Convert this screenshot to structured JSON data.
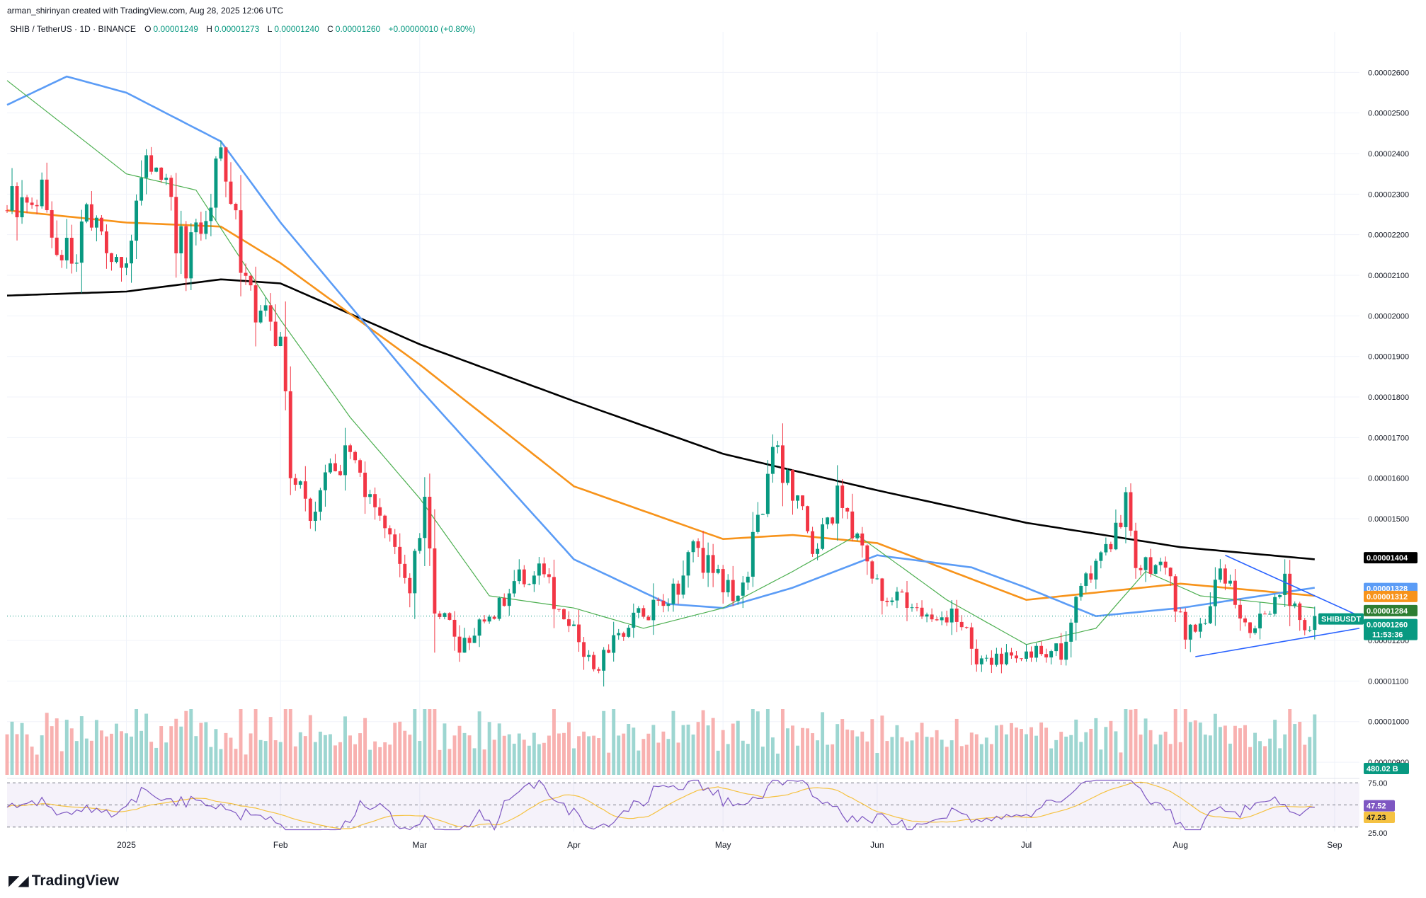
{
  "header": {
    "author_line": "arman_shirinyan created with TradingView.com, Aug 28, 2025 12:06 UTC"
  },
  "symbol": {
    "name": "SHIB / TetherUS · 1D · BINANCE",
    "open_label": "O",
    "open": "0.00001249",
    "high_label": "H",
    "high": "0.00001273",
    "low_label": "L",
    "low": "0.00001240",
    "close_label": "C",
    "close": "0.00001260",
    "change": "+0.00000010 (+0.80%)"
  },
  "footer": {
    "brand": "TradingView",
    "logo_glyph": "◤◢"
  },
  "colors": {
    "up": "#089981",
    "down": "#f23645",
    "upVol": "#92d2cc",
    "downVol": "#f7a9a7",
    "ma_black": "#000000",
    "ma_orange": "#f7931a",
    "ma_blue": "#5b9cf6",
    "ma_green": "#4caf50",
    "rsi": "#7e57c2",
    "rsi_ma": "#f5c242",
    "trendline": "#2962ff"
  },
  "chart_data": {
    "type": "candlestick",
    "symbol": "SHIBUSDT",
    "interval": "1D",
    "exchange": "BINANCE",
    "price_axis": {
      "range": [
        8.6e-06,
        2.7e-05
      ],
      "ticks": [
        {
          "value": 2.6e-05,
          "label": "0.00002600"
        },
        {
          "value": 2.5e-05,
          "label": "0.00002500"
        },
        {
          "value": 2.4e-05,
          "label": "0.00002400"
        },
        {
          "value": 2.3e-05,
          "label": "0.00002300"
        },
        {
          "value": 2.2e-05,
          "label": "0.00002200"
        },
        {
          "value": 2.1e-05,
          "label": "0.00002100"
        },
        {
          "value": 2e-05,
          "label": "0.00002000"
        },
        {
          "value": 1.9e-05,
          "label": "0.00001900"
        },
        {
          "value": 1.8e-05,
          "label": "0.00001800"
        },
        {
          "value": 1.7e-05,
          "label": "0.00001700"
        },
        {
          "value": 1.6e-05,
          "label": "0.00001600"
        },
        {
          "value": 1.5e-05,
          "label": "0.00001500"
        },
        {
          "value": 1.2e-05,
          "label": "0.00001200"
        },
        {
          "value": 1.1e-05,
          "label": "0.00001100"
        },
        {
          "value": 1e-05,
          "label": "0.00001000"
        },
        {
          "value": 9e-06,
          "label": "0.00000900"
        }
      ]
    },
    "time_axis": {
      "start": "2024-12-08",
      "end": "2025-09-06",
      "ticks": [
        {
          "date": "2025-01-01",
          "label": "2025"
        },
        {
          "date": "2025-02-01",
          "label": "Feb"
        },
        {
          "date": "2025-03-01",
          "label": "Mar"
        },
        {
          "date": "2025-04-01",
          "label": "Apr"
        },
        {
          "date": "2025-05-01",
          "label": "May"
        },
        {
          "date": "2025-06-01",
          "label": "Jun"
        },
        {
          "date": "2025-07-01",
          "label": "Jul"
        },
        {
          "date": "2025-08-01",
          "label": "Aug"
        },
        {
          "date": "2025-09-01",
          "label": "Sep"
        }
      ]
    },
    "close_anchors": [
      {
        "date": "2024-12-08",
        "close": 2.26e-05
      },
      {
        "date": "2024-12-14",
        "close": 2.32e-05
      },
      {
        "date": "2024-12-20",
        "close": 2.14e-05
      },
      {
        "date": "2024-12-26",
        "close": 2.26e-05
      },
      {
        "date": "2024-12-31",
        "close": 2.11e-05
      },
      {
        "date": "2025-01-06",
        "close": 2.4e-05
      },
      {
        "date": "2025-01-13",
        "close": 2.13e-05
      },
      {
        "date": "2025-01-18",
        "close": 2.25e-05
      },
      {
        "date": "2025-01-20",
        "close": 2.44e-05
      },
      {
        "date": "2025-01-25",
        "close": 2.07e-05
      },
      {
        "date": "2025-02-01",
        "close": 1.93e-05
      },
      {
        "date": "2025-02-03",
        "close": 1.62e-05
      },
      {
        "date": "2025-02-07",
        "close": 1.53e-05
      },
      {
        "date": "2025-02-15",
        "close": 1.67e-05
      },
      {
        "date": "2025-02-20",
        "close": 1.54e-05
      },
      {
        "date": "2025-02-27",
        "close": 1.35e-05
      },
      {
        "date": "2025-03-02",
        "close": 1.52e-05
      },
      {
        "date": "2025-03-04",
        "close": 1.29e-05
      },
      {
        "date": "2025-03-10",
        "close": 1.18e-05
      },
      {
        "date": "2025-03-16",
        "close": 1.27e-05
      },
      {
        "date": "2025-03-25",
        "close": 1.4e-05
      },
      {
        "date": "2025-03-30",
        "close": 1.25e-05
      },
      {
        "date": "2025-04-06",
        "close": 1.12e-05
      },
      {
        "date": "2025-04-09",
        "close": 1.21e-05
      },
      {
        "date": "2025-04-14",
        "close": 1.25e-05
      },
      {
        "date": "2025-04-22",
        "close": 1.32e-05
      },
      {
        "date": "2025-04-25",
        "close": 1.42e-05
      },
      {
        "date": "2025-05-04",
        "close": 1.29e-05
      },
      {
        "date": "2025-05-08",
        "close": 1.48e-05
      },
      {
        "date": "2025-05-11",
        "close": 1.68e-05
      },
      {
        "date": "2025-05-15",
        "close": 1.55e-05
      },
      {
        "date": "2025-05-20",
        "close": 1.42e-05
      },
      {
        "date": "2025-05-24",
        "close": 1.55e-05
      },
      {
        "date": "2025-05-30",
        "close": 1.41e-05
      },
      {
        "date": "2025-06-02",
        "close": 1.28e-05
      },
      {
        "date": "2025-06-08",
        "close": 1.3e-05
      },
      {
        "date": "2025-06-13",
        "close": 1.22e-05
      },
      {
        "date": "2025-06-16",
        "close": 1.3e-05
      },
      {
        "date": "2025-06-22",
        "close": 1.13e-05
      },
      {
        "date": "2025-06-25",
        "close": 1.15e-05
      },
      {
        "date": "2025-07-03",
        "close": 1.17e-05
      },
      {
        "date": "2025-07-08",
        "close": 1.18e-05
      },
      {
        "date": "2025-07-12",
        "close": 1.35e-05
      },
      {
        "date": "2025-07-18",
        "close": 1.44e-05
      },
      {
        "date": "2025-07-21",
        "close": 1.55e-05
      },
      {
        "date": "2025-07-23",
        "close": 1.39e-05
      },
      {
        "date": "2025-07-28",
        "close": 1.4e-05
      },
      {
        "date": "2025-08-02",
        "close": 1.23e-05
      },
      {
        "date": "2025-08-04",
        "close": 1.21e-05
      },
      {
        "date": "2025-08-09",
        "close": 1.35e-05
      },
      {
        "date": "2025-08-12",
        "close": 1.3e-05
      },
      {
        "date": "2025-08-14",
        "close": 1.25e-05
      },
      {
        "date": "2025-08-19",
        "close": 1.24e-05
      },
      {
        "date": "2025-08-22",
        "close": 1.35e-05
      },
      {
        "date": "2025-08-25",
        "close": 1.24e-05
      },
      {
        "date": "2025-08-28",
        "close": 1.26e-05
      }
    ],
    "moving_averages": [
      {
        "color_key": "ma_black",
        "points": [
          {
            "date": "2024-12-08",
            "value": 2.05e-05
          },
          {
            "date": "2025-01-01",
            "value": 2.06e-05
          },
          {
            "date": "2025-01-20",
            "value": 2.09e-05
          },
          {
            "date": "2025-02-01",
            "value": 2.08e-05
          },
          {
            "date": "2025-03-01",
            "value": 1.93e-05
          },
          {
            "date": "2025-04-01",
            "value": 1.79e-05
          },
          {
            "date": "2025-05-01",
            "value": 1.66e-05
          },
          {
            "date": "2025-06-01",
            "value": 1.57e-05
          },
          {
            "date": "2025-07-01",
            "value": 1.49e-05
          },
          {
            "date": "2025-08-01",
            "value": 1.43e-05
          },
          {
            "date": "2025-08-28",
            "value": 1.4e-05
          }
        ]
      },
      {
        "color_key": "ma_orange",
        "points": [
          {
            "date": "2024-12-08",
            "value": 2.26e-05
          },
          {
            "date": "2025-01-01",
            "value": 2.23e-05
          },
          {
            "date": "2025-01-20",
            "value": 2.22e-05
          },
          {
            "date": "2025-02-01",
            "value": 2.13e-05
          },
          {
            "date": "2025-03-01",
            "value": 1.88e-05
          },
          {
            "date": "2025-04-01",
            "value": 1.58e-05
          },
          {
            "date": "2025-05-01",
            "value": 1.45e-05
          },
          {
            "date": "2025-05-15",
            "value": 1.46e-05
          },
          {
            "date": "2025-06-01",
            "value": 1.44e-05
          },
          {
            "date": "2025-07-01",
            "value": 1.3e-05
          },
          {
            "date": "2025-08-01",
            "value": 1.34e-05
          },
          {
            "date": "2025-08-28",
            "value": 1.31e-05
          }
        ]
      },
      {
        "color_key": "ma_blue",
        "points": [
          {
            "date": "2024-12-08",
            "value": 2.52e-05
          },
          {
            "date": "2024-12-20",
            "value": 2.59e-05
          },
          {
            "date": "2025-01-01",
            "value": 2.55e-05
          },
          {
            "date": "2025-01-20",
            "value": 2.43e-05
          },
          {
            "date": "2025-02-01",
            "value": 2.23e-05
          },
          {
            "date": "2025-03-01",
            "value": 1.82e-05
          },
          {
            "date": "2025-04-01",
            "value": 1.4e-05
          },
          {
            "date": "2025-04-20",
            "value": 1.29e-05
          },
          {
            "date": "2025-05-01",
            "value": 1.28e-05
          },
          {
            "date": "2025-05-15",
            "value": 1.33e-05
          },
          {
            "date": "2025-06-01",
            "value": 1.41e-05
          },
          {
            "date": "2025-06-20",
            "value": 1.38e-05
          },
          {
            "date": "2025-07-01",
            "value": 1.33e-05
          },
          {
            "date": "2025-07-15",
            "value": 1.26e-05
          },
          {
            "date": "2025-08-01",
            "value": 1.28e-05
          },
          {
            "date": "2025-08-28",
            "value": 1.33e-05
          }
        ]
      },
      {
        "color_key": "ma_green",
        "points": [
          {
            "date": "2024-12-08",
            "value": 2.58e-05
          },
          {
            "date": "2025-01-01",
            "value": 2.35e-05
          },
          {
            "date": "2025-01-15",
            "value": 2.31e-05
          },
          {
            "date": "2025-02-01",
            "value": 1.99e-05
          },
          {
            "date": "2025-02-15",
            "value": 1.75e-05
          },
          {
            "date": "2025-03-01",
            "value": 1.55e-05
          },
          {
            "date": "2025-03-15",
            "value": 1.31e-05
          },
          {
            "date": "2025-04-01",
            "value": 1.28e-05
          },
          {
            "date": "2025-04-15",
            "value": 1.23e-05
          },
          {
            "date": "2025-05-01",
            "value": 1.28e-05
          },
          {
            "date": "2025-05-15",
            "value": 1.37e-05
          },
          {
            "date": "2025-05-28",
            "value": 1.46e-05
          },
          {
            "date": "2025-06-15",
            "value": 1.3e-05
          },
          {
            "date": "2025-07-01",
            "value": 1.19e-05
          },
          {
            "date": "2025-07-15",
            "value": 1.23e-05
          },
          {
            "date": "2025-07-25",
            "value": 1.37e-05
          },
          {
            "date": "2025-08-05",
            "value": 1.31e-05
          },
          {
            "date": "2025-08-28",
            "value": 1.28e-05
          }
        ]
      }
    ],
    "trendlines": [
      {
        "from": {
          "date": "2025-08-04",
          "value": 1.16e-05
        },
        "to": {
          "date": "2025-09-06",
          "value": 1.23e-05
        }
      },
      {
        "from": {
          "date": "2025-08-10",
          "value": 1.41e-05
        },
        "to": {
          "date": "2025-09-06",
          "value": 1.26e-05
        }
      }
    ],
    "price_tags": [
      {
        "value": 1.404e-05,
        "label": "0.00001404",
        "color": "#000000"
      },
      {
        "value": 1.328e-05,
        "label": "0.00001328",
        "color": "#5b9cf6"
      },
      {
        "value": 1.312e-05,
        "label": "0.00001312",
        "color": "#f7931a"
      },
      {
        "value": 1.284e-05,
        "label": "0.00001284",
        "color": "#2e7d32"
      },
      {
        "value": 1.26e-05,
        "label": "0.00001260",
        "label2": "11:53:36",
        "color": "#089981"
      }
    ],
    "symbol_tag": "SHIBUSDT",
    "volume": {
      "last_label": "480.02 B"
    },
    "rsi": {
      "range": [
        20,
        80
      ],
      "upper": 75.0,
      "upper_label": "75.00",
      "lower": 25.0,
      "lower_label": "25.00",
      "last": 47.52,
      "last_label": "47.52",
      "ma_last": 47.23,
      "ma_last_label": "47.23"
    }
  }
}
